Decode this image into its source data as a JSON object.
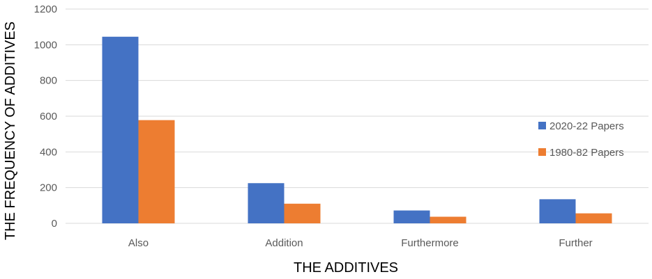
{
  "chart_data": {
    "type": "bar",
    "title": "",
    "xlabel": "THE ADDITIVES",
    "ylabel": "THE FREQUENCY OF ADDITIVES",
    "categories": [
      "Also",
      "Addition",
      "Furthermore",
      "Further"
    ],
    "series": [
      {
        "name": "2020-22 Papers",
        "color": "#4472C4",
        "values": [
          1045,
          225,
          72,
          135
        ]
      },
      {
        "name": "1980-82 Papers",
        "color": "#ED7D31",
        "values": [
          578,
          110,
          37,
          56
        ]
      }
    ],
    "ylim": [
      0,
      1200
    ],
    "yticks": [
      0,
      200,
      400,
      600,
      800,
      1000,
      1200
    ],
    "grid": true,
    "legend": "right"
  }
}
